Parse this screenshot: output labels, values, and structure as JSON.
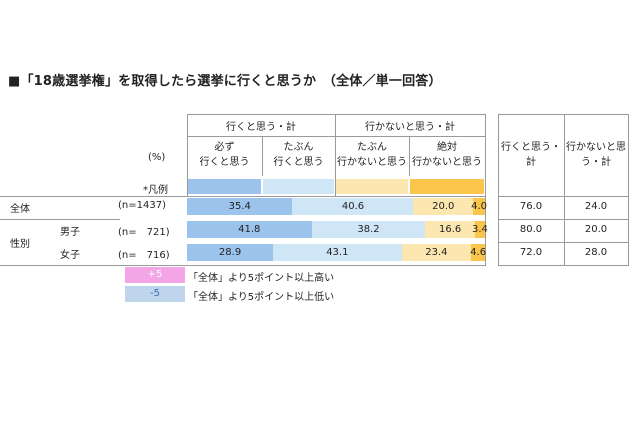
{
  "title": "■「18歳選挙権」を取得したら選挙に行くと思うか　（全体／単一回答）",
  "header": {
    "group_go": "行くと思う・計",
    "group_nogo": "行かないと思う・計",
    "sub": [
      "必ず\n行くと思う",
      "たぶん\n行くと思う",
      "たぶん\n行かないと思う",
      "絶対\n行かないと思う"
    ],
    "unit": "(%)",
    "legend_label": "*凡例",
    "right_go": "行くと思う・\n計",
    "right_nogo": "行かないと思\nう・計"
  },
  "rows": [
    {
      "group": "全体",
      "label": "",
      "n": "(n=1437)"
    },
    {
      "group": "性別",
      "label": "男子",
      "n": "(n=　721)"
    },
    {
      "group": "",
      "label": "女子",
      "n": "(n=　716)"
    }
  ],
  "group_label_sex": "性別",
  "totals": [
    {
      "go": "76.0",
      "nogo": "24.0"
    },
    {
      "go": "80.0",
      "nogo": "20.0"
    },
    {
      "go": "72.0",
      "nogo": "28.0"
    }
  ],
  "notes": [
    {
      "badge": "+5",
      "text": "「全体」より5ポイント以上高い"
    },
    {
      "badge": "-5",
      "text": "「全体」より5ポイント以上低い"
    }
  ],
  "colors": {
    "must_go": "#9cc3ec",
    "maybe_go": "#cfe6f7",
    "maybe_not": "#fde7b0",
    "never": "#f9c54a",
    "plus_badge": "#f4a5e6",
    "minus_badge": "#bfd5ec"
  },
  "chart_data": {
    "type": "bar",
    "orientation": "horizontal-stacked",
    "categories": [
      "全体",
      "男子",
      "女子"
    ],
    "series": [
      {
        "name": "必ず行くと思う",
        "values": [
          35.4,
          41.8,
          28.9
        ]
      },
      {
        "name": "たぶん行くと思う",
        "values": [
          40.6,
          38.2,
          43.1
        ]
      },
      {
        "name": "たぶん行かないと思う",
        "values": [
          20.0,
          16.6,
          23.4
        ]
      },
      {
        "name": "絶対行かないと思う",
        "values": [
          4.0,
          3.4,
          4.6
        ]
      }
    ],
    "xlim": [
      0,
      100
    ]
  }
}
